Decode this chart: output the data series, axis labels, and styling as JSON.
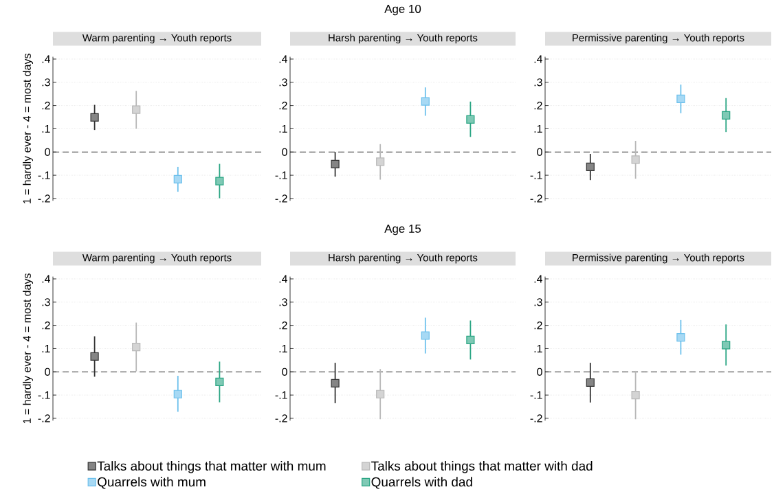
{
  "chart_data": [
    {
      "type": "scatter",
      "title": "Warm parenting → Youth reports",
      "ylabel": "1 = hardly ever - 4 = most days",
      "categories": [
        null,
        null,
        null,
        null
      ],
      "marker": "square",
      "grid": "y",
      "tick_labels": "y",
      "ylim": [
        -0.21,
        0.41
      ],
      "yticks": [
        {
          "value": -0.2,
          "label": "-.2"
        },
        {
          "value": -0.1,
          "label": "-.1"
        },
        0,
        {
          "value": 0.1,
          "label": ".1"
        },
        {
          "value": 0.2,
          "label": ".2"
        },
        {
          "value": 0.3,
          "label": ".3"
        },
        {
          "value": 0.4,
          "label": ".4"
        }
      ],
      "ref_lines": [
        {
          "axis": "y",
          "value": 0,
          "line_style": "dashed",
          "color": "#000000"
        }
      ],
      "series": [
        {
          "color": "#333333",
          "values": [
            0.149,
            null,
            null,
            null
          ],
          "errors": [
            [
              0.095,
              0.203
            ],
            null,
            null,
            null
          ]
        },
        {
          "color": "#b8b8b8",
          "values": [
            null,
            0.182,
            null,
            null
          ],
          "errors": [
            null,
            [
              0.1,
              0.263
            ],
            null,
            null
          ]
        },
        {
          "color": "#6cc0ec",
          "values": [
            null,
            null,
            -0.117,
            null
          ],
          "errors": [
            null,
            null,
            [
              -0.171,
              -0.064
            ],
            null
          ]
        },
        {
          "color": "#2aa583",
          "values": [
            null,
            null,
            null,
            -0.125
          ],
          "errors": [
            null,
            null,
            null,
            [
              -0.199,
              -0.051
            ]
          ]
        }
      ]
    },
    {
      "type": "scatter",
      "subtitle": "Age 10",
      "title": "Harsh parenting → Youth reports",
      "categories": [
        null,
        null,
        null,
        null
      ],
      "marker": "square",
      "grid": "y",
      "tick_labels": "y",
      "ylim": [
        -0.21,
        0.41
      ],
      "yticks": [
        {
          "value": -0.2,
          "label": "-.2"
        },
        {
          "value": -0.1,
          "label": "-.1"
        },
        0,
        {
          "value": 0.1,
          "label": ".1"
        },
        {
          "value": 0.2,
          "label": ".2"
        },
        {
          "value": 0.3,
          "label": ".3"
        },
        {
          "value": 0.4,
          "label": ".4"
        }
      ],
      "ref_lines": [
        {
          "axis": "y",
          "value": 0,
          "line_style": "dashed",
          "color": "#000000"
        }
      ],
      "series": [
        {
          "color": "#333333",
          "values": [
            -0.052,
            null,
            null,
            null
          ],
          "errors": [
            [
              -0.106,
              0.0
            ],
            null,
            null,
            null
          ]
        },
        {
          "color": "#b8b8b8",
          "values": [
            null,
            -0.042,
            null,
            null
          ],
          "errors": [
            null,
            [
              -0.119,
              0.034
            ],
            null,
            null
          ]
        },
        {
          "color": "#6cc0ec",
          "values": [
            null,
            null,
            0.218,
            null
          ],
          "errors": [
            null,
            null,
            [
              0.156,
              0.278
            ],
            null
          ]
        },
        {
          "color": "#2aa583",
          "values": [
            null,
            null,
            null,
            0.14
          ],
          "errors": [
            null,
            null,
            null,
            [
              0.065,
              0.217
            ]
          ]
        }
      ]
    },
    {
      "type": "scatter",
      "title": "Permissive parenting → Youth reports",
      "categories": [
        null,
        null,
        null,
        null
      ],
      "marker": "square",
      "grid": "y",
      "tick_labels": "y",
      "ylim": [
        -0.21,
        0.41
      ],
      "yticks": [
        {
          "value": -0.2,
          "label": "-.2"
        },
        {
          "value": -0.1,
          "label": "-.1"
        },
        0,
        {
          "value": 0.1,
          "label": ".1"
        },
        {
          "value": 0.2,
          "label": ".2"
        },
        {
          "value": 0.3,
          "label": ".3"
        },
        {
          "value": 0.4,
          "label": ".4"
        }
      ],
      "ref_lines": [
        {
          "axis": "y",
          "value": 0,
          "line_style": "dashed",
          "color": "#000000"
        }
      ],
      "series": [
        {
          "color": "#333333",
          "values": [
            -0.064,
            null,
            null,
            null
          ],
          "errors": [
            [
              -0.121,
              -0.008
            ],
            null,
            null,
            null
          ]
        },
        {
          "color": "#b8b8b8",
          "values": [
            null,
            -0.033,
            null,
            null
          ],
          "errors": [
            null,
            [
              -0.115,
              0.048
            ],
            null,
            null
          ]
        },
        {
          "color": "#6cc0ec",
          "values": [
            null,
            null,
            0.229,
            null
          ],
          "errors": [
            null,
            null,
            [
              0.167,
              0.29
            ],
            null
          ]
        },
        {
          "color": "#2aa583",
          "values": [
            null,
            null,
            null,
            0.158
          ],
          "errors": [
            null,
            null,
            null,
            [
              0.086,
              0.232
            ]
          ]
        }
      ]
    },
    {
      "type": "scatter",
      "title": "Warm parenting → Youth reports",
      "ylabel": "1 = hardly ever - 4 = most days",
      "categories": [
        null,
        null,
        null,
        null
      ],
      "marker": "square",
      "grid": "y",
      "tick_labels": "y",
      "ylim": [
        -0.21,
        0.41
      ],
      "yticks": [
        {
          "value": -0.2,
          "label": "-.2"
        },
        {
          "value": -0.1,
          "label": "-.1"
        },
        0,
        {
          "value": 0.1,
          "label": ".1"
        },
        {
          "value": 0.2,
          "label": ".2"
        },
        {
          "value": 0.3,
          "label": ".3"
        },
        {
          "value": 0.4,
          "label": ".4"
        }
      ],
      "ref_lines": [
        {
          "axis": "y",
          "value": 0,
          "line_style": "dashed",
          "color": "#000000"
        }
      ],
      "series": [
        {
          "color": "#333333",
          "values": [
            0.066,
            null,
            null,
            null
          ],
          "errors": [
            [
              -0.021,
              0.153
            ],
            null,
            null,
            null
          ]
        },
        {
          "color": "#b8b8b8",
          "values": [
            null,
            0.107,
            null,
            null
          ],
          "errors": [
            null,
            [
              0.002,
              0.212
            ],
            null,
            null
          ]
        },
        {
          "color": "#6cc0ec",
          "values": [
            null,
            null,
            -0.096,
            null
          ],
          "errors": [
            null,
            null,
            [
              -0.172,
              -0.017
            ],
            null
          ]
        },
        {
          "color": "#2aa583",
          "values": [
            null,
            null,
            null,
            -0.043
          ],
          "errors": [
            null,
            null,
            null,
            [
              -0.131,
              0.044
            ]
          ]
        }
      ]
    },
    {
      "type": "scatter",
      "subtitle": "Age 15",
      "title": "Harsh parenting → Youth reports",
      "categories": [
        null,
        null,
        null,
        null
      ],
      "marker": "square",
      "grid": "y",
      "tick_labels": "y",
      "ylim": [
        -0.21,
        0.41
      ],
      "yticks": [
        {
          "value": -0.2,
          "label": "-.2"
        },
        {
          "value": -0.1,
          "label": "-.1"
        },
        0,
        {
          "value": 0.1,
          "label": ".1"
        },
        {
          "value": 0.2,
          "label": ".2"
        },
        {
          "value": 0.3,
          "label": ".3"
        },
        {
          "value": 0.4,
          "label": ".4"
        }
      ],
      "ref_lines": [
        {
          "axis": "y",
          "value": 0,
          "line_style": "dashed",
          "color": "#000000"
        }
      ],
      "series": [
        {
          "color": "#333333",
          "values": [
            -0.049,
            null,
            null,
            null
          ],
          "errors": [
            [
              -0.135,
              0.039
            ],
            null,
            null,
            null
          ]
        },
        {
          "color": "#b8b8b8",
          "values": [
            null,
            -0.096,
            null,
            null
          ],
          "errors": [
            null,
            [
              -0.204,
              0.012
            ],
            null,
            null
          ]
        },
        {
          "color": "#6cc0ec",
          "values": [
            null,
            null,
            0.156,
            null
          ],
          "errors": [
            null,
            null,
            [
              0.079,
              0.233
            ],
            null
          ]
        },
        {
          "color": "#2aa583",
          "values": [
            null,
            null,
            null,
            0.137
          ],
          "errors": [
            null,
            null,
            null,
            [
              0.053,
              0.221
            ]
          ]
        }
      ]
    },
    {
      "type": "scatter",
      "title": "Permissive parenting → Youth reports",
      "categories": [
        null,
        null,
        null,
        null
      ],
      "marker": "square",
      "grid": "y",
      "tick_labels": "y",
      "legend": "bottom",
      "ylim": [
        -0.21,
        0.41
      ],
      "yticks": [
        {
          "value": -0.2,
          "label": "-.2"
        },
        {
          "value": -0.1,
          "label": "-.1"
        },
        0,
        {
          "value": 0.1,
          "label": ".1"
        },
        {
          "value": 0.2,
          "label": ".2"
        },
        {
          "value": 0.3,
          "label": ".3"
        },
        {
          "value": 0.4,
          "label": ".4"
        }
      ],
      "ref_lines": [
        {
          "axis": "y",
          "value": 0,
          "line_style": "dashed",
          "color": "#000000"
        }
      ],
      "series": [
        {
          "name": "Talks about things that matter with mum",
          "color": "#333333",
          "values": [
            -0.046,
            null,
            null,
            null
          ],
          "errors": [
            [
              -0.132,
              0.039
            ],
            null,
            null,
            null
          ]
        },
        {
          "name": "Talks about things that matter with dad",
          "color": "#b8b8b8",
          "values": [
            null,
            -0.1,
            null,
            null
          ],
          "errors": [
            null,
            [
              -0.204,
              0.004
            ],
            null,
            null
          ]
        },
        {
          "name": "Quarrels with mum",
          "color": "#6cc0ec",
          "values": [
            null,
            null,
            0.148,
            null
          ],
          "errors": [
            null,
            null,
            [
              0.074,
              0.223
            ],
            null
          ]
        },
        {
          "name": "Quarrels with dad",
          "color": "#2aa583",
          "values": [
            null,
            null,
            null,
            0.115
          ],
          "errors": [
            null,
            null,
            null,
            [
              0.027,
              0.204
            ]
          ]
        }
      ]
    }
  ]
}
